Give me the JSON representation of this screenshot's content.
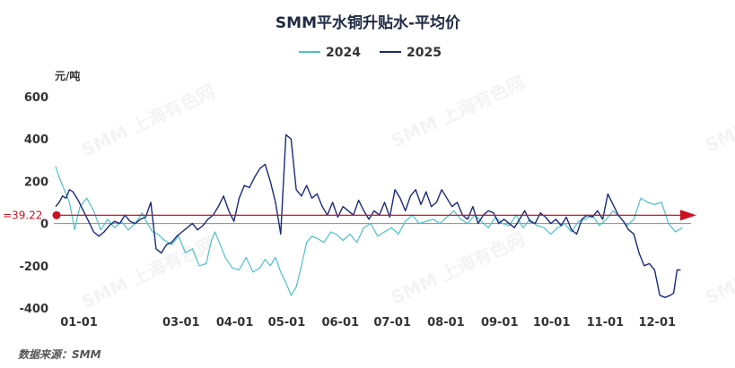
{
  "chart_data": {
    "type": "line",
    "title": "SMM平水铜升贴水-平均价",
    "ylabel": "元/吨",
    "xlabel": "",
    "ylim": [
      -400,
      600
    ],
    "yticks": [
      600,
      400,
      200,
      0,
      -200,
      -400
    ],
    "x_tick_labels": [
      "01-01",
      "03-01",
      "04-01",
      "05-01",
      "06-01",
      "07-01",
      "08-01",
      "09-01",
      "10-01",
      "11-01",
      "12-01"
    ],
    "x_tick_days": [
      0,
      59,
      90,
      120,
      151,
      181,
      212,
      243,
      273,
      304,
      334
    ],
    "legend_position": "top-center",
    "grid": false,
    "reference_line": {
      "value": 39.22,
      "label": "=39.22",
      "color": "#cc1122"
    },
    "source_note": "数据来源：SMM",
    "watermark": "SMM 上海有色网",
    "series": [
      {
        "name": "2024",
        "color": "#4fc0c8",
        "x": [
          0,
          2,
          5,
          8,
          11,
          14,
          18,
          22,
          26,
          30,
          34,
          38,
          42,
          46,
          50,
          53,
          56,
          59,
          63,
          67,
          71,
          75,
          79,
          83,
          87,
          90,
          92,
          95,
          98,
          102,
          106,
          110,
          114,
          118,
          121,
          124,
          127,
          130,
          133,
          136,
          139,
          142,
          145,
          148,
          151,
          155,
          159,
          162,
          166,
          170,
          174,
          178,
          182,
          186,
          190,
          194,
          198,
          202,
          206,
          210,
          214,
          218,
          222,
          226,
          230,
          234,
          238,
          242,
          246,
          250,
          254,
          258,
          262,
          266,
          270,
          274,
          278,
          282,
          286,
          290,
          294,
          298,
          302,
          306,
          310,
          314,
          318,
          322,
          326,
          330,
          334,
          338,
          342,
          346,
          350,
          354,
          358,
          362
        ],
        "y": [
          270,
          220,
          160,
          100,
          -30,
          80,
          120,
          60,
          -30,
          20,
          -20,
          10,
          -30,
          0,
          50,
          0,
          -40,
          -50,
          -80,
          -100,
          -60,
          -140,
          -120,
          -200,
          -190,
          -80,
          -40,
          -100,
          -160,
          -210,
          -220,
          -160,
          -230,
          -210,
          -170,
          -200,
          -160,
          -230,
          -280,
          -340,
          -300,
          -200,
          -90,
          -60,
          -70,
          -90,
          -40,
          -50,
          -80,
          -50,
          -90,
          -20,
          0,
          -60,
          -40,
          -20,
          -50,
          10,
          40,
          0,
          10,
          20,
          0,
          30,
          60,
          20,
          0,
          40,
          10,
          -20,
          30,
          0,
          -10,
          40,
          -20,
          20,
          -10,
          -20,
          -50,
          -20,
          0,
          -40,
          10,
          20,
          40,
          -10,
          20,
          60,
          30,
          -10,
          20,
          120,
          100,
          90,
          100,
          0,
          -40,
          -20
        ]
      },
      {
        "name": "2025",
        "color": "#1b2a7a",
        "x": [
          0,
          2,
          4,
          6,
          8,
          10,
          13,
          16,
          19,
          22,
          25,
          28,
          31,
          34,
          37,
          40,
          43,
          46,
          49,
          52,
          55,
          58,
          61,
          64,
          67,
          70,
          73,
          76,
          79,
          82,
          85,
          88,
          91,
          94,
          97,
          100,
          103,
          106,
          109,
          112,
          115,
          118,
          121,
          124,
          127,
          130,
          133,
          136,
          139,
          142,
          145,
          148,
          151,
          154,
          157,
          160,
          163,
          166,
          169,
          172,
          175,
          178,
          181,
          184,
          187,
          190,
          193,
          196,
          199,
          202,
          205,
          208,
          211,
          214,
          217,
          220,
          223,
          226,
          229,
          232,
          235,
          238,
          241,
          244,
          247,
          250,
          253,
          256,
          259,
          262,
          265,
          268,
          271,
          274,
          277,
          280,
          283,
          286,
          289,
          292,
          295,
          298,
          301,
          304,
          307,
          310,
          313,
          316,
          319,
          322,
          325,
          328,
          331,
          334,
          337,
          340,
          343,
          346,
          349,
          352,
          355,
          357,
          359,
          361
        ],
        "y": [
          80,
          100,
          130,
          120,
          160,
          150,
          110,
          60,
          10,
          -40,
          -60,
          -40,
          -10,
          10,
          0,
          40,
          10,
          0,
          20,
          30,
          100,
          -120,
          -140,
          -100,
          -90,
          -60,
          -40,
          -20,
          0,
          -30,
          -10,
          20,
          40,
          80,
          130,
          60,
          10,
          120,
          180,
          170,
          220,
          260,
          280,
          200,
          100,
          -50,
          420,
          400,
          160,
          130,
          180,
          120,
          140,
          80,
          40,
          100,
          30,
          80,
          60,
          40,
          110,
          60,
          20,
          60,
          40,
          100,
          30,
          160,
          120,
          60,
          130,
          160,
          90,
          150,
          80,
          100,
          160,
          120,
          80,
          100,
          40,
          20,
          80,
          0,
          40,
          60,
          50,
          0,
          20,
          0,
          -20,
          20,
          60,
          10,
          0,
          50,
          30,
          0,
          20,
          -10,
          30,
          -30,
          -50,
          20,
          40,
          30,
          60,
          20,
          140,
          90,
          40,
          10,
          -30,
          -50,
          -140,
          -200,
          -190,
          -220,
          -340,
          -350,
          -340,
          -330,
          -220,
          -220
        ]
      }
    ]
  }
}
